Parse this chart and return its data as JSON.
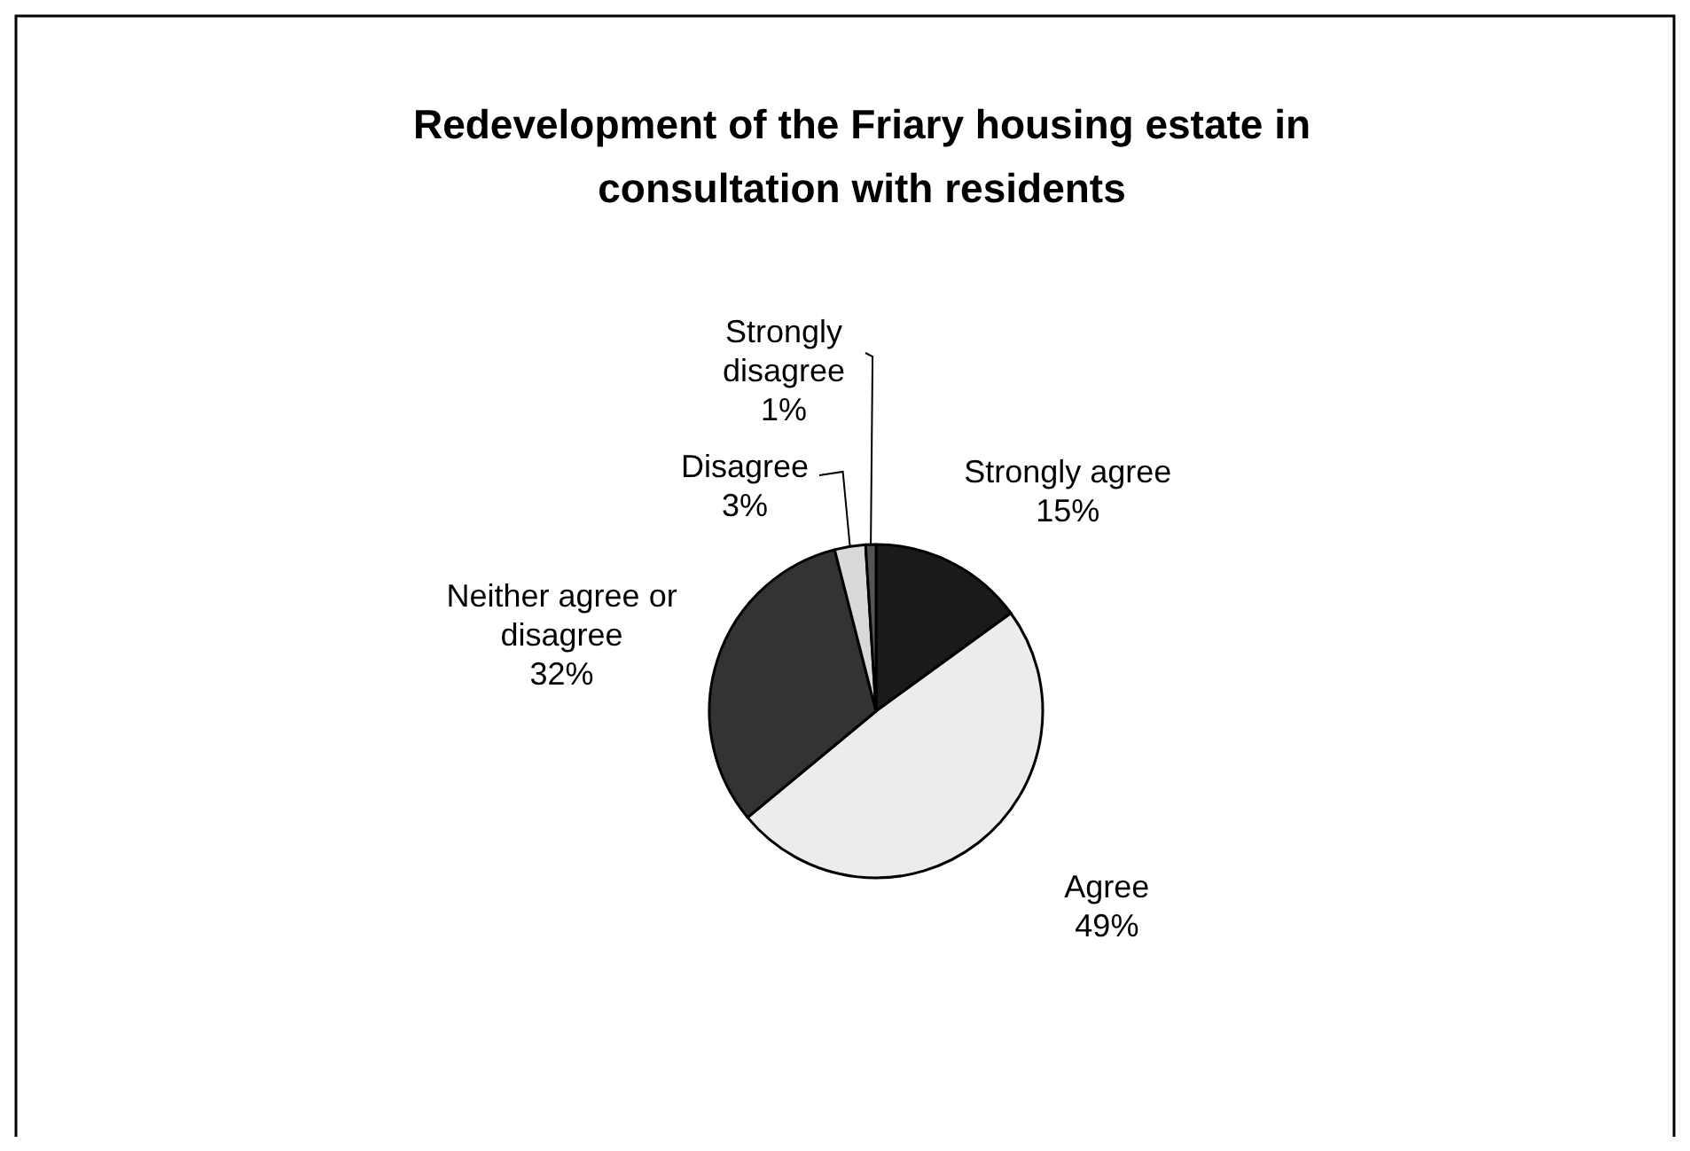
{
  "chart_data": {
    "type": "pie",
    "title": "Redevelopment of the Friary housing estate in consultation with residents",
    "categories": [
      "Strongly agree",
      "Agree",
      "Neither agree or disagree",
      "Disagree",
      "Strongly disagree"
    ],
    "values": [
      15,
      49,
      32,
      3,
      1
    ],
    "colors": [
      "#1a1a1a",
      "#ececec",
      "#333333",
      "#d9d9d9",
      "#555555"
    ],
    "value_labels": [
      "15%",
      "49%",
      "32%",
      "3%",
      "1%"
    ]
  }
}
